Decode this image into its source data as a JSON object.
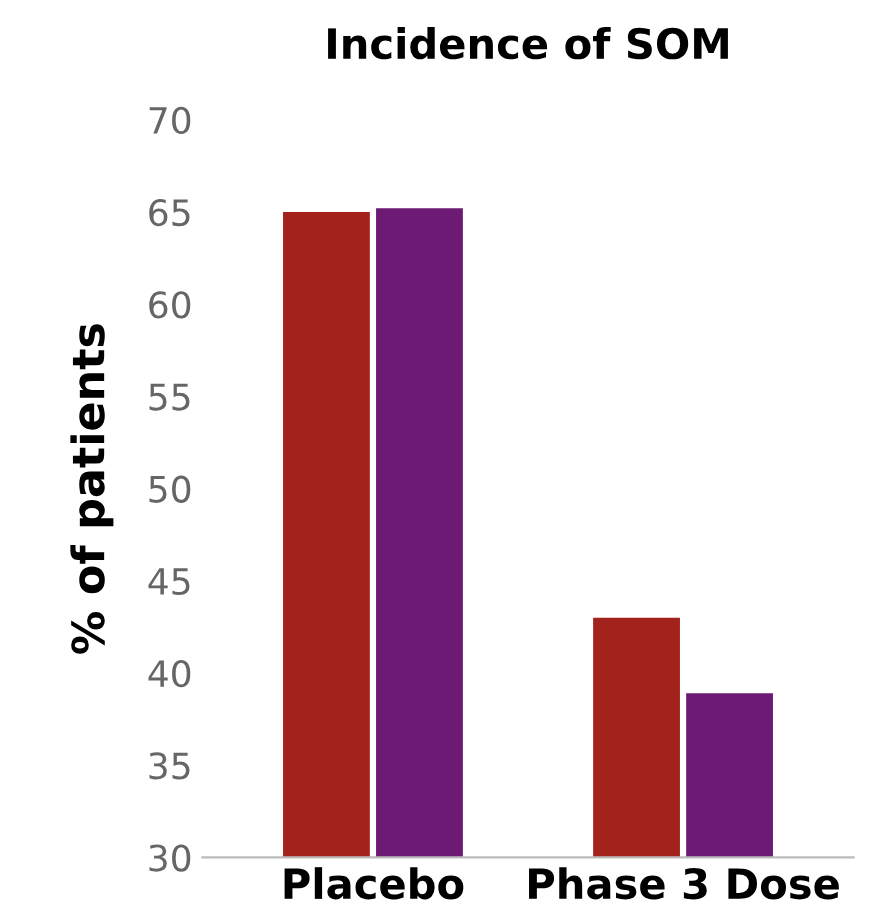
{
  "chart_data": {
    "type": "bar",
    "title": "Incidence of SOM",
    "ylabel": "% of patients",
    "categories": [
      "Placebo",
      "Phase 3 Dose"
    ],
    "series": [
      {
        "color": "#a3231c",
        "values": [
          65.0,
          43.0
        ]
      },
      {
        "color": "#6c1a74",
        "values": [
          65.2,
          38.9
        ]
      }
    ],
    "ylim": [
      30,
      70
    ],
    "yticks": [
      30,
      35,
      40,
      45,
      50,
      55,
      60,
      65,
      70
    ],
    "grid": false
  }
}
